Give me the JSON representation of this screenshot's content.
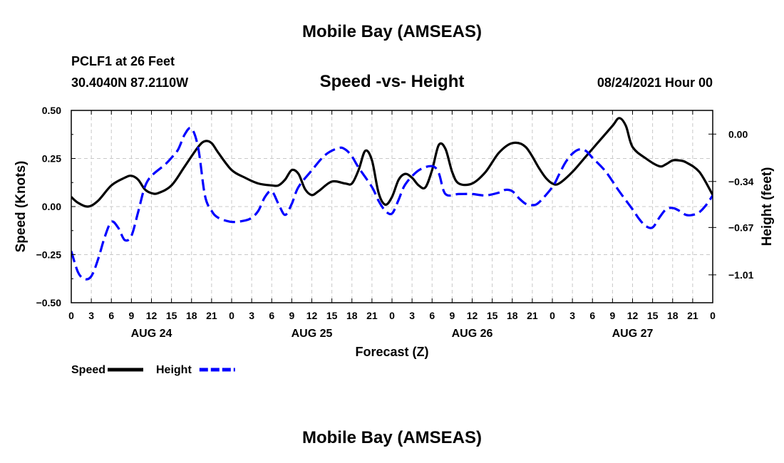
{
  "header": {
    "title": "Mobile Bay (AMSEAS)",
    "station": "PCLF1 at 26 Feet",
    "coords": "30.4040N  87.2110W",
    "chart_title": "Speed -vs- Height",
    "datetime": "08/24/2021 Hour 00"
  },
  "footer": {
    "title": "Mobile Bay (AMSEAS)"
  },
  "chart_data": {
    "type": "line",
    "title": "Speed -vs- Height",
    "xlabel": "Forecast (Z)",
    "x_tick_labels": [
      "0",
      "3",
      "6",
      "9",
      "12",
      "15",
      "18",
      "21",
      "0",
      "3",
      "6",
      "9",
      "12",
      "15",
      "18",
      "21",
      "0",
      "3",
      "6",
      "9",
      "12",
      "15",
      "18",
      "21",
      "0",
      "3",
      "6",
      "9",
      "12",
      "15",
      "18",
      "21",
      "0"
    ],
    "day_labels": [
      {
        "label": "AUG 24",
        "hour": 12
      },
      {
        "label": "AUG 25",
        "hour": 36
      },
      {
        "label": "AUG 26",
        "hour": 60
      },
      {
        "label": "AUG 27",
        "hour": 84
      }
    ],
    "x_range_hours": [
      0,
      96
    ],
    "left_axis": {
      "label": "Speed (Knots)",
      "ylim": [
        -0.5,
        0.5
      ],
      "ticks": [
        -0.5,
        -0.25,
        0,
        0.25,
        0.5
      ],
      "tick_labels": [
        "−0.50",
        "−0.25",
        "0.00",
        "0.25",
        "0.50"
      ]
    },
    "right_axis": {
      "label": "Height (feet)",
      "ylim": [
        -1.21,
        0.17
      ],
      "ticks": [
        0.0,
        -0.34,
        -0.67,
        -1.01
      ],
      "tick_labels": [
        "0.00",
        "−0.34",
        "−0.67",
        "−1.01"
      ]
    },
    "grid": true,
    "series": [
      {
        "name": "Speed",
        "axis": "left",
        "color": "#000000",
        "dash": "solid",
        "points": [
          [
            0,
            0.05
          ],
          [
            1,
            0.02
          ],
          [
            2.5,
            0.0
          ],
          [
            4,
            0.03
          ],
          [
            6,
            0.11
          ],
          [
            8,
            0.15
          ],
          [
            9,
            0.16
          ],
          [
            10,
            0.14
          ],
          [
            11,
            0.09
          ],
          [
            12,
            0.07
          ],
          [
            13,
            0.07
          ],
          [
            15,
            0.11
          ],
          [
            17,
            0.21
          ],
          [
            19,
            0.31
          ],
          [
            20,
            0.34
          ],
          [
            21,
            0.33
          ],
          [
            22,
            0.28
          ],
          [
            24,
            0.19
          ],
          [
            26,
            0.15
          ],
          [
            28,
            0.12
          ],
          [
            30,
            0.11
          ],
          [
            31,
            0.11
          ],
          [
            32,
            0.14
          ],
          [
            33,
            0.19
          ],
          [
            34,
            0.17
          ],
          [
            35,
            0.09
          ],
          [
            36,
            0.06
          ],
          [
            37,
            0.08
          ],
          [
            39,
            0.13
          ],
          [
            41,
            0.12
          ],
          [
            42,
            0.12
          ],
          [
            43,
            0.19
          ],
          [
            44,
            0.29
          ],
          [
            45,
            0.24
          ],
          [
            46,
            0.07
          ],
          [
            47,
            0.01
          ],
          [
            48,
            0.05
          ],
          [
            49,
            0.14
          ],
          [
            50,
            0.17
          ],
          [
            51,
            0.15
          ],
          [
            52,
            0.11
          ],
          [
            53,
            0.1
          ],
          [
            54,
            0.19
          ],
          [
            55,
            0.32
          ],
          [
            56,
            0.3
          ],
          [
            57,
            0.18
          ],
          [
            58,
            0.12
          ],
          [
            60,
            0.12
          ],
          [
            62,
            0.18
          ],
          [
            64,
            0.28
          ],
          [
            66,
            0.33
          ],
          [
            68,
            0.31
          ],
          [
            70,
            0.2
          ],
          [
            71,
            0.15
          ],
          [
            72,
            0.12
          ],
          [
            73,
            0.12
          ],
          [
            75,
            0.18
          ],
          [
            77,
            0.26
          ],
          [
            79,
            0.34
          ],
          [
            81,
            0.42
          ],
          [
            82,
            0.46
          ],
          [
            83,
            0.42
          ],
          [
            84,
            0.31
          ],
          [
            86,
            0.25
          ],
          [
            88,
            0.21
          ],
          [
            89,
            0.22
          ],
          [
            90,
            0.24
          ],
          [
            91,
            0.24
          ],
          [
            92,
            0.23
          ],
          [
            94,
            0.18
          ],
          [
            96,
            0.06
          ]
        ]
      },
      {
        "name": "Height",
        "axis": "right",
        "color": "#0000ff",
        "dash": "dashed",
        "points": [
          [
            0,
            -0.84
          ],
          [
            1,
            -0.99
          ],
          [
            2,
            -1.04
          ],
          [
            3,
            -1.02
          ],
          [
            4,
            -0.9
          ],
          [
            5,
            -0.74
          ],
          [
            6,
            -0.63
          ],
          [
            7,
            -0.67
          ],
          [
            8,
            -0.76
          ],
          [
            9,
            -0.73
          ],
          [
            10,
            -0.56
          ],
          [
            11,
            -0.38
          ],
          [
            12,
            -0.3
          ],
          [
            14,
            -0.22
          ],
          [
            15,
            -0.17
          ],
          [
            16,
            -0.11
          ],
          [
            17,
            0.0
          ],
          [
            18,
            0.04
          ],
          [
            19,
            -0.1
          ],
          [
            20,
            -0.44
          ],
          [
            21,
            -0.55
          ],
          [
            22,
            -0.6
          ],
          [
            24,
            -0.63
          ],
          [
            26,
            -0.62
          ],
          [
            27,
            -0.6
          ],
          [
            28,
            -0.55
          ],
          [
            29,
            -0.45
          ],
          [
            30,
            -0.41
          ],
          [
            31,
            -0.5
          ],
          [
            32,
            -0.58
          ],
          [
            33,
            -0.5
          ],
          [
            34,
            -0.38
          ],
          [
            36,
            -0.26
          ],
          [
            38,
            -0.15
          ],
          [
            40,
            -0.1
          ],
          [
            41,
            -0.11
          ],
          [
            42,
            -0.16
          ],
          [
            43,
            -0.24
          ],
          [
            45,
            -0.38
          ],
          [
            46,
            -0.48
          ],
          [
            47,
            -0.55
          ],
          [
            48,
            -0.57
          ],
          [
            49,
            -0.47
          ],
          [
            50,
            -0.36
          ],
          [
            52,
            -0.26
          ],
          [
            54,
            -0.23
          ],
          [
            55,
            -0.28
          ],
          [
            56,
            -0.43
          ],
          [
            58,
            -0.43
          ],
          [
            60,
            -0.43
          ],
          [
            62,
            -0.44
          ],
          [
            64,
            -0.42
          ],
          [
            65,
            -0.4
          ],
          [
            66,
            -0.41
          ],
          [
            67,
            -0.46
          ],
          [
            68,
            -0.5
          ],
          [
            69,
            -0.51
          ],
          [
            70,
            -0.49
          ],
          [
            72,
            -0.38
          ],
          [
            73,
            -0.29
          ],
          [
            74,
            -0.2
          ],
          [
            75,
            -0.14
          ],
          [
            76,
            -0.11
          ],
          [
            77,
            -0.12
          ],
          [
            78,
            -0.17
          ],
          [
            80,
            -0.27
          ],
          [
            82,
            -0.41
          ],
          [
            84,
            -0.54
          ],
          [
            85,
            -0.61
          ],
          [
            86,
            -0.66
          ],
          [
            87,
            -0.67
          ],
          [
            88,
            -0.6
          ],
          [
            89,
            -0.54
          ],
          [
            90,
            -0.53
          ],
          [
            91,
            -0.55
          ],
          [
            92,
            -0.58
          ],
          [
            93,
            -0.58
          ],
          [
            94,
            -0.56
          ],
          [
            95,
            -0.51
          ],
          [
            96,
            -0.44
          ]
        ]
      }
    ],
    "legend": {
      "position": "bottom-left",
      "items": [
        {
          "label": "Speed",
          "color": "#000000",
          "dash": "solid"
        },
        {
          "label": "Height",
          "color": "#0000ff",
          "dash": "dashed"
        }
      ]
    }
  }
}
